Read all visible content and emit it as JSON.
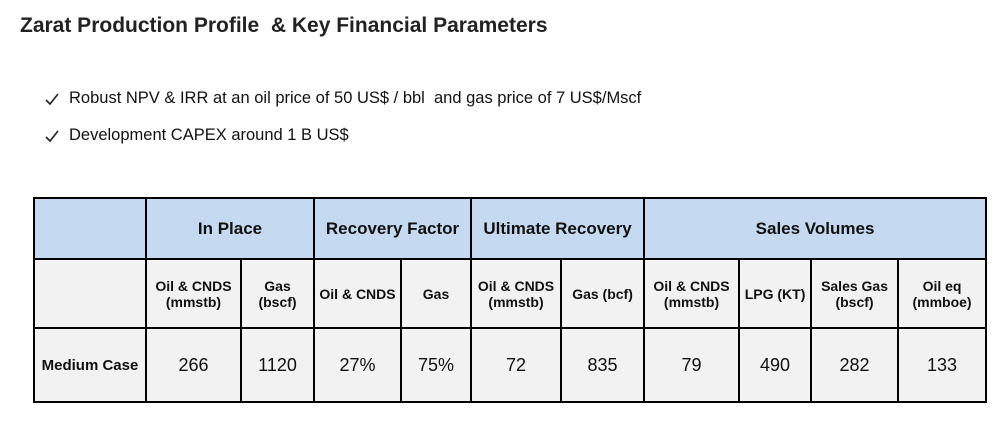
{
  "title": "Zarat Production Profile  & Key Financial Parameters",
  "bullets": [
    "Robust NPV & IRR at an oil price of 50 US$ / bbl  and gas price of 7 US$/Mscf",
    "Development CAPEX around 1 B US$"
  ],
  "table": {
    "groups": [
      "In Place",
      "Recovery Factor",
      "Ultimate Recovery",
      "Sales Volumes"
    ],
    "columns": [
      "Oil & CNDS (mmstb)",
      "Gas (bscf)",
      "Oil & CNDS",
      "Gas",
      "Oil & CNDS (mmstb)",
      "Gas (bcf)",
      "Oil & CNDS (mmstb)",
      "LPG (KT)",
      "Sales Gas (bscf)",
      "Oil eq (mmboe)"
    ],
    "rows": [
      {
        "label": "Medium Case",
        "cells": [
          "266",
          "1120",
          "27%",
          "75%",
          "72",
          "835",
          "79",
          "490",
          "282",
          "133"
        ]
      }
    ]
  }
}
